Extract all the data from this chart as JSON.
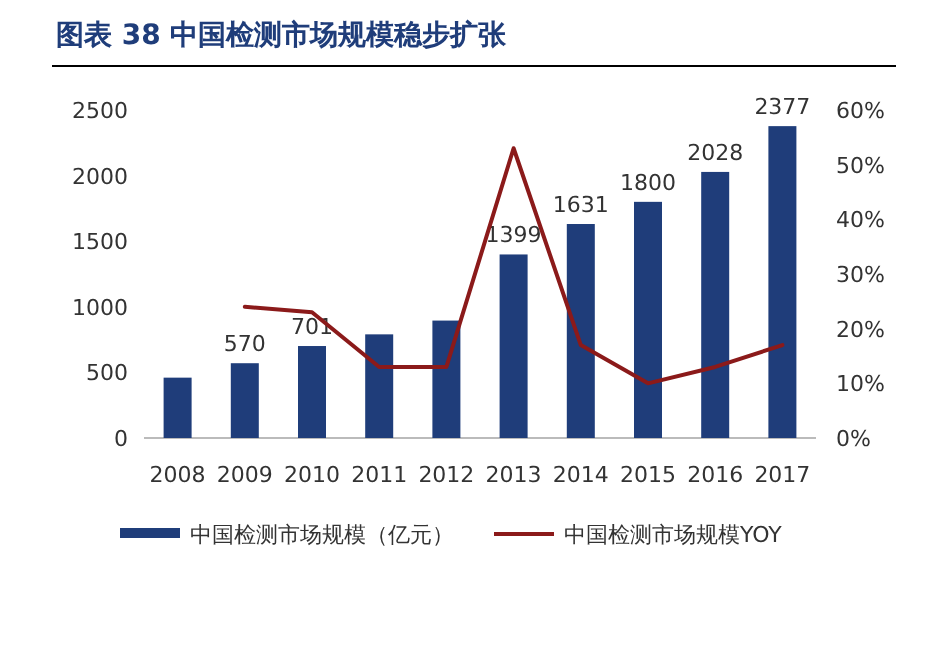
{
  "chart_data": {
    "type": "bar",
    "title": "图表 38   中国检测市场规模稳步扩张",
    "categories": [
      "2008",
      "2009",
      "2010",
      "2011",
      "2012",
      "2013",
      "2014",
      "2015",
      "2016",
      "2017"
    ],
    "series": [
      {
        "name": "中国检测市场规模（亿元）",
        "color": "#1f3d7a",
        "values": [
          460,
          570,
          701,
          790,
          895,
          1399,
          1631,
          1800,
          2028,
          2377
        ],
        "value_labels": [
          null,
          "570",
          "701",
          null,
          null,
          "1399",
          "1631",
          "1800",
          "2028",
          "2377"
        ]
      },
      {
        "name": "中国检测市场规模YOY",
        "type": "line",
        "axis": "y2",
        "color": "#8b1a1a",
        "values": [
          null,
          24,
          23,
          13,
          13,
          53,
          17,
          10,
          13,
          17
        ]
      }
    ],
    "ylim": [
      0,
      2500
    ],
    "yticks": [
      0,
      500,
      1000,
      1500,
      2000,
      2500
    ],
    "y2lim": [
      0,
      60
    ],
    "y2ticks": [
      {
        "value": 0,
        "label": "0%"
      },
      {
        "value": 10,
        "label": "10%"
      },
      {
        "value": 20,
        "label": "20%"
      },
      {
        "value": 30,
        "label": "30%"
      },
      {
        "value": 40,
        "label": "40%"
      },
      {
        "value": 50,
        "label": "50%"
      },
      {
        "value": 60,
        "label": "60%"
      }
    ],
    "grid": false,
    "legend": "bottom",
    "marker": "none",
    "line_style": "solid"
  }
}
